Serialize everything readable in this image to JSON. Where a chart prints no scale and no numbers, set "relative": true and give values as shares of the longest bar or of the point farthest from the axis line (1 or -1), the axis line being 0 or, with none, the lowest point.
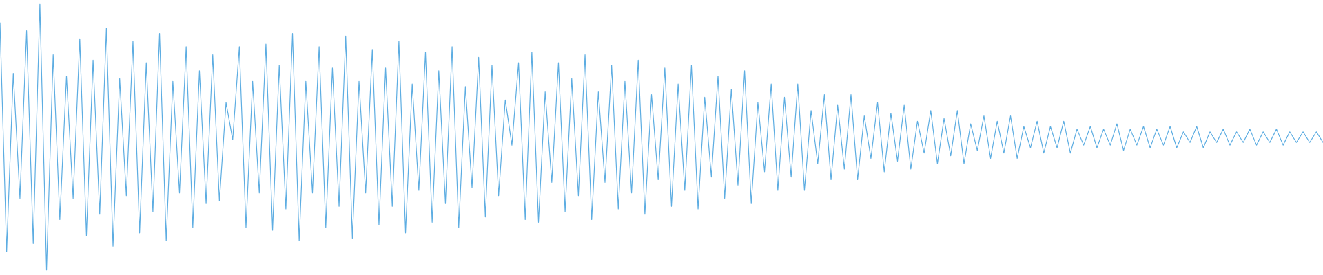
{
  "chart_data": {
    "type": "line",
    "relative": true,
    "marker": "none",
    "categories": [
      null,
      null,
      null,
      null,
      null,
      null,
      null,
      null,
      null,
      null,
      null,
      null,
      null,
      null,
      null,
      null,
      null,
      null,
      null,
      null,
      null,
      null,
      null,
      null,
      null,
      null,
      null,
      null,
      null,
      null,
      null,
      null,
      null,
      null,
      null,
      null,
      null,
      null,
      null,
      null,
      null,
      null,
      null,
      null,
      null,
      null,
      null,
      null,
      null,
      null,
      null,
      null,
      null,
      null,
      null,
      null,
      null,
      null,
      null,
      null,
      null,
      null,
      null,
      null,
      null,
      null,
      null,
      null,
      null,
      null,
      null,
      null,
      null,
      null,
      null,
      null,
      null,
      null,
      null,
      null,
      null,
      null,
      null,
      null,
      null,
      null,
      null,
      null,
      null,
      null,
      null,
      null,
      null,
      null,
      null,
      null,
      null,
      null,
      null,
      null,
      null,
      null,
      null,
      null,
      null,
      null,
      null,
      null,
      null,
      null,
      null,
      null,
      null,
      null,
      null,
      null,
      null,
      null,
      null,
      null,
      null,
      null,
      null,
      null,
      null,
      null,
      null,
      null,
      null,
      null,
      null,
      null,
      null,
      null,
      null,
      null,
      null,
      null,
      null,
      null,
      null,
      null,
      null,
      null,
      null,
      null,
      null,
      null,
      null,
      null,
      null,
      null,
      null,
      null,
      null,
      null,
      null,
      null,
      null,
      null,
      null,
      null,
      null,
      null,
      null,
      null,
      null,
      null,
      null,
      null,
      null,
      null,
      null,
      null,
      null,
      null,
      null,
      null,
      null,
      null,
      null,
      null,
      null,
      null,
      null,
      null,
      null,
      null,
      null,
      null,
      null,
      null,
      null,
      null,
      null,
      null,
      null,
      null,
      null,
      null
    ],
    "series": [
      {
        "color": "#5dade2",
        "values": [
          0.93,
          0.07,
          0.74,
          0.27,
          0.9,
          0.1,
          1.0,
          0.0,
          0.81,
          0.19,
          0.73,
          0.27,
          0.87,
          0.13,
          0.79,
          0.21,
          0.91,
          0.09,
          0.72,
          0.28,
          0.86,
          0.14,
          0.78,
          0.22,
          0.89,
          0.11,
          0.71,
          0.29,
          0.84,
          0.16,
          0.75,
          0.25,
          0.81,
          0.26,
          0.63,
          0.49,
          0.84,
          0.16,
          0.71,
          0.29,
          0.85,
          0.15,
          0.77,
          0.23,
          0.89,
          0.11,
          0.71,
          0.29,
          0.84,
          0.16,
          0.76,
          0.24,
          0.88,
          0.12,
          0.71,
          0.29,
          0.83,
          0.17,
          0.76,
          0.24,
          0.86,
          0.14,
          0.7,
          0.3,
          0.82,
          0.18,
          0.75,
          0.25,
          0.84,
          0.16,
          0.69,
          0.31,
          0.8,
          0.2,
          0.77,
          0.28,
          0.64,
          0.47,
          0.78,
          0.19,
          0.82,
          0.18,
          0.67,
          0.33,
          0.78,
          0.22,
          0.72,
          0.28,
          0.81,
          0.19,
          0.67,
          0.33,
          0.77,
          0.23,
          0.71,
          0.29,
          0.79,
          0.21,
          0.66,
          0.34,
          0.76,
          0.24,
          0.7,
          0.3,
          0.77,
          0.23,
          0.65,
          0.35,
          0.73,
          0.27,
          0.68,
          0.32,
          0.75,
          0.25,
          0.63,
          0.37,
          0.7,
          0.3,
          0.65,
          0.35,
          0.7,
          0.3,
          0.6,
          0.4,
          0.66,
          0.34,
          0.62,
          0.38,
          0.66,
          0.34,
          0.58,
          0.42,
          0.63,
          0.37,
          0.59,
          0.41,
          0.62,
          0.38,
          0.56,
          0.44,
          0.6,
          0.4,
          0.57,
          0.43,
          0.6,
          0.4,
          0.55,
          0.45,
          0.58,
          0.42,
          0.56,
          0.44,
          0.58,
          0.42,
          0.54,
          0.46,
          0.56,
          0.44,
          0.54,
          0.46,
          0.56,
          0.44,
          0.53,
          0.47,
          0.54,
          0.46,
          0.53,
          0.47,
          0.55,
          0.45,
          0.53,
          0.47,
          0.54,
          0.46,
          0.53,
          0.47,
          0.54,
          0.46,
          0.52,
          0.48,
          0.54,
          0.46,
          0.52,
          0.48,
          0.53,
          0.47,
          0.52,
          0.48,
          0.53,
          0.47,
          0.52,
          0.48,
          0.53,
          0.47,
          0.52,
          0.48,
          0.52,
          0.48,
          0.52,
          0.48
        ]
      }
    ]
  }
}
